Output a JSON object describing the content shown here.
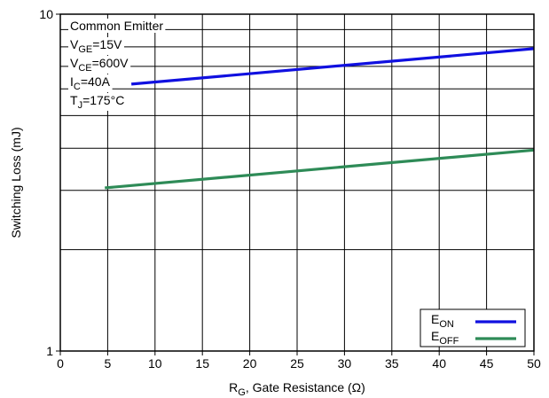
{
  "chart_data": {
    "type": "line",
    "xlabel": {
      "main": "R",
      "sub": "G",
      "rest": ", Gate Resistance (Ω)"
    },
    "ylabel": "Switching Loss (mJ)",
    "xlim": [
      0,
      50
    ],
    "ylim": [
      1,
      10
    ],
    "yscale": "log",
    "grid": true,
    "x_ticks": [
      0,
      5,
      10,
      15,
      20,
      25,
      30,
      35,
      40,
      45,
      50
    ],
    "x_tick_labels": [
      "0",
      "5",
      "10",
      "15",
      "20",
      "25",
      "30",
      "35",
      "40",
      "45",
      "50"
    ],
    "y_ticks": [
      1,
      10
    ],
    "y_tick_labels": [
      "1",
      "10"
    ],
    "conditions": [
      {
        "main": "Common Emitter",
        "sub": "",
        "rest": ""
      },
      {
        "main": "V",
        "sub": "GE",
        "rest": "=15V"
      },
      {
        "main": "V",
        "sub": "CE",
        "rest": "=600V"
      },
      {
        "main": "I",
        "sub": "C",
        "rest": "=40A"
      },
      {
        "main": "T",
        "sub": "J",
        "rest": "=175°C"
      }
    ],
    "legend_position": "bottom-right",
    "series": [
      {
        "name": {
          "main": "E",
          "sub": "ON"
        },
        "color": "#1010e0",
        "x": [
          7.5,
          50
        ],
        "y": [
          6.2,
          7.9
        ]
      },
      {
        "name": {
          "main": "E",
          "sub": "OFF"
        },
        "color": "#2e8b57",
        "x": [
          4.7,
          50
        ],
        "y": [
          3.05,
          3.95
        ]
      }
    ]
  }
}
